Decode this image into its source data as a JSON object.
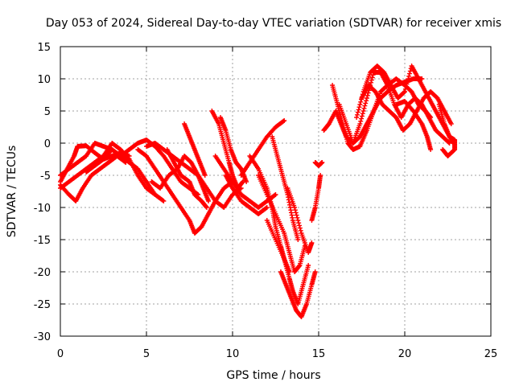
{
  "chart_data": {
    "type": "scatter",
    "title": "Day 053 of 2024, Sidereal Day-to-day VTEC variation (SDTVAR) for receiver xmis",
    "xlabel": "GPS time / hours",
    "ylabel": "SDTVAR / TECUs",
    "xlim": [
      0,
      25
    ],
    "ylim": [
      -30,
      15
    ],
    "xticks": [
      "0",
      "5",
      "10",
      "15",
      "20",
      "25"
    ],
    "yticks": [
      "-30",
      "-25",
      "-20",
      "-15",
      "-10",
      "-5",
      "0",
      "5",
      "10",
      "15"
    ],
    "grid": true,
    "marker": "plus",
    "color": "#ff0000",
    "series": [
      {
        "points": [
          [
            0,
            -6
          ],
          [
            0.4,
            -4
          ],
          [
            0.8,
            -2
          ],
          [
            1.0,
            -0.5
          ],
          [
            1.5,
            -0.4
          ],
          [
            2.0,
            -1.5
          ],
          [
            2.5,
            -2.5
          ],
          [
            3.0,
            -1
          ],
          [
            3.5,
            -2
          ],
          [
            4.0,
            -3
          ],
          [
            4.5,
            -4
          ],
          [
            5.0,
            -6
          ],
          [
            5.5,
            -8
          ],
          [
            6.0,
            -9
          ]
        ]
      },
      {
        "points": [
          [
            0,
            -7
          ],
          [
            0.5,
            -6
          ],
          [
            1.0,
            -5
          ],
          [
            1.5,
            -4
          ],
          [
            2.0,
            -3
          ],
          [
            2.5,
            -2
          ],
          [
            3.0,
            0
          ],
          [
            3.5,
            -1
          ],
          [
            4.0,
            -2.5
          ],
          [
            4.5,
            -5
          ],
          [
            5.0,
            -7
          ],
          [
            5.5,
            -8
          ]
        ]
      },
      {
        "points": [
          [
            0,
            -5
          ],
          [
            0.5,
            -4
          ],
          [
            1.0,
            -3
          ],
          [
            1.5,
            -2
          ],
          [
            2.0,
            0
          ],
          [
            2.5,
            -0.5
          ],
          [
            3.0,
            -1
          ],
          [
            3.5,
            -2
          ],
          [
            4.0,
            -2.5
          ]
        ]
      },
      {
        "points": [
          [
            0,
            -6.5
          ],
          [
            0.5,
            -8
          ],
          [
            0.9,
            -9
          ],
          [
            1.3,
            -7
          ],
          [
            1.8,
            -5
          ],
          [
            2.3,
            -4
          ],
          [
            2.8,
            -3
          ],
          [
            3.3,
            -2
          ],
          [
            3.8,
            -3
          ]
        ]
      },
      {
        "points": [
          [
            1.5,
            -4.5
          ],
          [
            2.0,
            -3.5
          ],
          [
            2.5,
            -2.5
          ],
          [
            3.0,
            -2
          ],
          [
            3.5,
            -1.5
          ],
          [
            4.0,
            -2
          ]
        ]
      },
      {
        "points": [
          [
            3.5,
            -2
          ],
          [
            4.0,
            -1
          ],
          [
            4.5,
            0
          ],
          [
            5.0,
            0.5
          ],
          [
            5.5,
            -0.5
          ],
          [
            6.0,
            -2
          ],
          [
            6.5,
            -4
          ],
          [
            7.0,
            -6
          ],
          [
            7.5,
            -7
          ],
          [
            8.0,
            -8
          ]
        ]
      },
      {
        "points": [
          [
            4.5,
            -1
          ],
          [
            5.0,
            -2
          ],
          [
            5.5,
            -4
          ],
          [
            6.0,
            -6
          ],
          [
            6.5,
            -8
          ],
          [
            7.0,
            -10
          ],
          [
            7.5,
            -12
          ],
          [
            7.8,
            -14
          ],
          [
            8.2,
            -13
          ],
          [
            8.6,
            -11
          ],
          [
            9.0,
            -9
          ],
          [
            9.5,
            -7
          ],
          [
            10.0,
            -6
          ]
        ]
      },
      {
        "points": [
          [
            5.0,
            -0.5
          ],
          [
            5.5,
            0
          ],
          [
            6.0,
            -1
          ],
          [
            6.5,
            -2
          ],
          [
            7.0,
            -3
          ],
          [
            7.5,
            -4
          ],
          [
            8.0,
            -5
          ],
          [
            8.5,
            -7
          ],
          [
            9.0,
            -9
          ],
          [
            9.5,
            -10
          ],
          [
            10.0,
            -8
          ],
          [
            10.5,
            -7
          ]
        ]
      },
      {
        "points": [
          [
            5.3,
            -6
          ],
          [
            5.8,
            -7
          ],
          [
            6.3,
            -5
          ],
          [
            6.8,
            -4
          ],
          [
            7.2,
            -2
          ],
          [
            7.6,
            -3
          ],
          [
            8.0,
            -5
          ],
          [
            8.3,
            -7
          ],
          [
            8.6,
            -9
          ]
        ]
      },
      {
        "points": [
          [
            6.2,
            -1
          ],
          [
            6.6,
            -3
          ],
          [
            7.0,
            -5
          ],
          [
            7.5,
            -6
          ],
          [
            7.8,
            -8
          ],
          [
            8.2,
            -9
          ],
          [
            8.5,
            -10
          ]
        ]
      },
      {
        "points": [
          [
            7.2,
            3
          ],
          [
            7.5,
            1
          ],
          [
            7.8,
            -1
          ],
          [
            8.1,
            -3
          ],
          [
            8.4,
            -5
          ]
        ]
      },
      {
        "points": [
          [
            8.8,
            5
          ],
          [
            9.2,
            3
          ],
          [
            9.5,
            0
          ],
          [
            9.8,
            -3
          ],
          [
            10.0,
            -5
          ],
          [
            10.3,
            -7
          ],
          [
            10.6,
            -6
          ]
        ]
      },
      {
        "points": [
          [
            9.3,
            4
          ],
          [
            9.6,
            2
          ],
          [
            9.9,
            -1
          ],
          [
            10.2,
            -3
          ],
          [
            10.5,
            -4
          ],
          [
            10.8,
            -6
          ]
        ]
      },
      {
        "points": [
          [
            9.0,
            -2
          ],
          [
            9.5,
            -4
          ],
          [
            10.0,
            -6
          ],
          [
            10.5,
            -8
          ],
          [
            11.0,
            -9
          ],
          [
            11.5,
            -10
          ],
          [
            12.0,
            -9
          ],
          [
            12.5,
            -8
          ]
        ]
      },
      {
        "points": [
          [
            9.6,
            -5
          ],
          [
            10.0,
            -7
          ],
          [
            10.5,
            -9
          ],
          [
            11.0,
            -10
          ],
          [
            11.5,
            -11
          ],
          [
            12.0,
            -10
          ]
        ]
      },
      {
        "points": [
          [
            10.5,
            -5
          ],
          [
            11.0,
            -3
          ],
          [
            11.5,
            -1
          ],
          [
            12.0,
            1
          ],
          [
            12.5,
            2.5
          ],
          [
            13.0,
            3.5
          ]
        ]
      },
      {
        "points": [
          [
            11.0,
            -2
          ],
          [
            11.5,
            -4
          ],
          [
            12.0,
            -7
          ],
          [
            12.3,
            -10
          ],
          [
            12.5,
            -13
          ],
          [
            12.8,
            -16
          ],
          [
            13.0,
            -18
          ],
          [
            13.3,
            -20
          ]
        ]
      },
      {
        "points": [
          [
            11.5,
            -5
          ],
          [
            12.0,
            -8
          ],
          [
            12.5,
            -11
          ],
          [
            13.0,
            -14
          ],
          [
            13.3,
            -17
          ],
          [
            13.6,
            -20
          ],
          [
            13.9,
            -19
          ],
          [
            14.2,
            -16
          ]
        ]
      },
      {
        "points": [
          [
            12.0,
            -12
          ],
          [
            12.5,
            -15
          ],
          [
            13.0,
            -18
          ],
          [
            13.3,
            -21
          ],
          [
            13.5,
            -23
          ],
          [
            13.8,
            -25
          ],
          [
            14.1,
            -22
          ],
          [
            14.4,
            -19
          ]
        ]
      },
      {
        "points": [
          [
            12.8,
            -20
          ],
          [
            13.1,
            -22
          ],
          [
            13.4,
            -24
          ],
          [
            13.7,
            -26
          ],
          [
            14.0,
            -27
          ],
          [
            14.3,
            -25
          ],
          [
            14.6,
            -22
          ],
          [
            14.8,
            -20
          ]
        ]
      },
      {
        "points": [
          [
            12.3,
            1
          ],
          [
            12.6,
            -2
          ],
          [
            12.9,
            -5
          ],
          [
            13.2,
            -8
          ],
          [
            13.5,
            -12
          ],
          [
            13.8,
            -15
          ]
        ]
      },
      {
        "points": [
          [
            13.2,
            -7
          ],
          [
            13.6,
            -10
          ],
          [
            14.0,
            -14
          ],
          [
            14.4,
            -17
          ],
          [
            14.6,
            -15.5
          ]
        ]
      },
      {
        "points": [
          [
            14.6,
            -12
          ],
          [
            14.8,
            -10
          ],
          [
            15.0,
            -7
          ],
          [
            15.1,
            -5
          ]
        ]
      },
      {
        "points": [
          [
            14.8,
            -3
          ],
          [
            15.0,
            -3.5
          ],
          [
            15.2,
            -3
          ]
        ]
      },
      {
        "points": [
          [
            15.3,
            2
          ],
          [
            15.6,
            3
          ],
          [
            16.0,
            5
          ],
          [
            16.3,
            3
          ],
          [
            16.6,
            1
          ],
          [
            17.0,
            0
          ],
          [
            17.4,
            1
          ],
          [
            17.8,
            3
          ],
          [
            18.2,
            5
          ],
          [
            18.6,
            7
          ],
          [
            19.0,
            8
          ],
          [
            19.5,
            9
          ],
          [
            20.0,
            9.5
          ],
          [
            20.5,
            10
          ],
          [
            21.0,
            10
          ]
        ]
      },
      {
        "points": [
          [
            15.8,
            9
          ],
          [
            16.1,
            6
          ],
          [
            16.4,
            3
          ],
          [
            16.7,
            0
          ],
          [
            17.0,
            -1
          ],
          [
            17.4,
            -0.5
          ],
          [
            17.8,
            2
          ],
          [
            18.2,
            5
          ],
          [
            18.6,
            8
          ],
          [
            19.0,
            9
          ],
          [
            19.5,
            10
          ],
          [
            20.0,
            9
          ],
          [
            20.4,
            8
          ],
          [
            20.8,
            6
          ],
          [
            21.2,
            5
          ],
          [
            21.5,
            4
          ]
        ]
      },
      {
        "points": [
          [
            16.2,
            6
          ],
          [
            16.6,
            3
          ],
          [
            17.0,
            0
          ],
          [
            17.4,
            3
          ],
          [
            17.8,
            7
          ],
          [
            18.2,
            11
          ],
          [
            18.6,
            11
          ],
          [
            19.0,
            9
          ],
          [
            19.4,
            6
          ],
          [
            19.8,
            4
          ],
          [
            20.2,
            6
          ],
          [
            20.6,
            7
          ],
          [
            21.0,
            6
          ],
          [
            21.4,
            4
          ],
          [
            21.8,
            2
          ],
          [
            22.2,
            1
          ],
          [
            22.6,
            0
          ]
        ]
      },
      {
        "points": [
          [
            17.2,
            4
          ],
          [
            17.6,
            8
          ],
          [
            18.0,
            11
          ],
          [
            18.4,
            12
          ],
          [
            18.8,
            11
          ],
          [
            19.2,
            9
          ],
          [
            19.6,
            7
          ],
          [
            20.0,
            8
          ],
          [
            20.4,
            12
          ],
          [
            20.8,
            10
          ],
          [
            21.2,
            8
          ],
          [
            21.6,
            6
          ],
          [
            22.0,
            4
          ],
          [
            22.4,
            2
          ],
          [
            22.8,
            0
          ]
        ]
      },
      {
        "points": [
          [
            17.5,
            7
          ],
          [
            17.9,
            9
          ],
          [
            18.3,
            8
          ],
          [
            18.7,
            6
          ],
          [
            19.1,
            5
          ],
          [
            19.5,
            4
          ],
          [
            19.9,
            2
          ],
          [
            20.3,
            3
          ],
          [
            20.7,
            5
          ],
          [
            21.1,
            7
          ],
          [
            21.5,
            8
          ],
          [
            21.9,
            7
          ],
          [
            22.3,
            5
          ],
          [
            22.7,
            3
          ]
        ]
      },
      {
        "points": [
          [
            19.5,
            6
          ],
          [
            20.0,
            6.5
          ],
          [
            20.5,
            5
          ],
          [
            21.0,
            3
          ],
          [
            21.3,
            1
          ],
          [
            21.5,
            -1
          ]
        ]
      },
      {
        "points": [
          [
            22.0,
            6
          ],
          [
            22.3,
            3
          ],
          [
            22.6,
            1
          ],
          [
            22.9,
            0.5
          ],
          [
            22.9,
            -1
          ],
          [
            22.5,
            -2
          ],
          [
            22.2,
            -1
          ]
        ]
      }
    ]
  }
}
